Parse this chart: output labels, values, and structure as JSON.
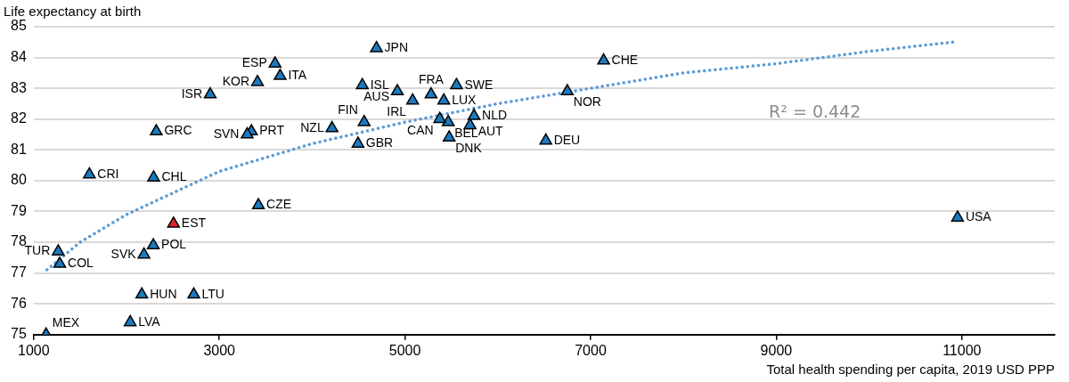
{
  "chart_data": {
    "type": "scatter",
    "ylabel": "Life expectancy at birth",
    "xlabel": "Total health spending per capita, 2019 USD PPP",
    "xlim": [
      1000,
      12000
    ],
    "xticks": [
      1000,
      3000,
      5000,
      7000,
      9000,
      11000
    ],
    "ylim": [
      75,
      85
    ],
    "yticks": [
      75,
      76,
      77,
      78,
      79,
      80,
      81,
      82,
      83,
      84,
      85
    ],
    "grid": "y",
    "marker": "triangle",
    "annotations": [
      "R² = 0.442"
    ],
    "series": [
      {
        "type": "line",
        "color": "#5b9bd5",
        "line_style": "dotted",
        "marker": "none",
        "x": [
          1100,
          1500,
          2000,
          3000,
          4000,
          5000,
          6000,
          7000,
          8000,
          9000,
          10000,
          10900
        ],
        "values": [
          77.0,
          78.0,
          78.9,
          80.3,
          81.2,
          81.9,
          82.5,
          83.0,
          83.5,
          83.8,
          84.2,
          84.5
        ]
      },
      {
        "name": "MEX",
        "color": "#1a7abf",
        "x": [
          1134
        ],
        "values": [
          75.0
        ]
      },
      {
        "name": "LVA",
        "color": "#1a7abf",
        "x": [
          2040
        ],
        "values": [
          75.4
        ]
      },
      {
        "name": "HUN",
        "color": "#1a7abf",
        "x": [
          2165
        ],
        "values": [
          76.3
        ]
      },
      {
        "name": "LTU",
        "color": "#1a7abf",
        "x": [
          2725
        ],
        "values": [
          76.3
        ]
      },
      {
        "name": "TUR",
        "color": "#1a7abf",
        "x": [
          1264
        ],
        "values": [
          77.7
        ]
      },
      {
        "name": "COL",
        "color": "#1a7abf",
        "x": [
          1281
        ],
        "values": [
          77.3
        ]
      },
      {
        "name": "SVK",
        "color": "#1a7abf",
        "x": [
          2188
        ],
        "values": [
          77.6
        ]
      },
      {
        "name": "POL",
        "color": "#1a7abf",
        "x": [
          2289
        ],
        "values": [
          77.9
        ]
      },
      {
        "name": "EST",
        "color": "#e0262b",
        "x": [
          2507
        ],
        "values": [
          78.6
        ]
      },
      {
        "name": "CZE",
        "color": "#1a7abf",
        "x": [
          3421
        ],
        "values": [
          79.2
        ]
      },
      {
        "name": "CRI",
        "color": "#1a7abf",
        "x": [
          1600
        ],
        "values": [
          80.2
        ]
      },
      {
        "name": "CHL",
        "color": "#1a7abf",
        "x": [
          2292
        ],
        "values": [
          80.1
        ]
      },
      {
        "name": "GRC",
        "color": "#1a7abf",
        "x": [
          2321
        ],
        "values": [
          81.6
        ]
      },
      {
        "name": "SVN",
        "color": "#1a7abf",
        "x": [
          3300
        ],
        "values": [
          81.5
        ]
      },
      {
        "name": "PRT",
        "color": "#1a7abf",
        "x": [
          3346
        ],
        "values": [
          81.6
        ]
      },
      {
        "name": "ISR",
        "color": "#1a7abf",
        "x": [
          2902
        ],
        "values": [
          82.8
        ]
      },
      {
        "name": "KOR",
        "color": "#1a7abf",
        "x": [
          3411
        ],
        "values": [
          83.2
        ]
      },
      {
        "name": "ESP",
        "color": "#1a7abf",
        "x": [
          3600
        ],
        "values": [
          83.8
        ]
      },
      {
        "name": "ITA",
        "color": "#1a7abf",
        "x": [
          3655
        ],
        "values": [
          83.4
        ]
      },
      {
        "name": "NZL",
        "color": "#1a7abf",
        "x": [
          4214
        ],
        "values": [
          81.7
        ]
      },
      {
        "name": "JPN",
        "color": "#1a7abf",
        "x": [
          4693
        ],
        "values": [
          84.3
        ]
      },
      {
        "name": "ISL",
        "color": "#1a7abf",
        "x": [
          4540
        ],
        "values": [
          83.1
        ]
      },
      {
        "name": "AUS",
        "color": "#1a7abf",
        "x": [
          4918
        ],
        "values": [
          82.9
        ]
      },
      {
        "name": "IRL",
        "color": "#1a7abf",
        "x": [
          5082
        ],
        "values": [
          82.6
        ]
      },
      {
        "name": "FRA",
        "color": "#1a7abf",
        "x": [
          5281
        ],
        "values": [
          82.8
        ]
      },
      {
        "name": "SWE",
        "color": "#1a7abf",
        "x": [
          5555
        ],
        "values": [
          83.1
        ]
      },
      {
        "name": "LUX",
        "color": "#1a7abf",
        "x": [
          5418
        ],
        "values": [
          82.6
        ]
      },
      {
        "name": "FIN",
        "color": "#1a7abf",
        "x": [
          4560
        ],
        "values": [
          81.9
        ]
      },
      {
        "name": "CAN",
        "color": "#1a7abf",
        "x": [
          5375
        ],
        "values": [
          82.0
        ]
      },
      {
        "name": "BEL",
        "color": "#1a7abf",
        "x": [
          5466
        ],
        "values": [
          81.9
        ]
      },
      {
        "name": "NLD",
        "color": "#1a7abf",
        "x": [
          5744
        ],
        "values": [
          82.1
        ]
      },
      {
        "name": "AUT",
        "color": "#1a7abf",
        "x": [
          5701
        ],
        "values": [
          81.8
        ]
      },
      {
        "name": "DNK",
        "color": "#1a7abf",
        "x": [
          5476
        ],
        "values": [
          81.4
        ]
      },
      {
        "name": "GBR",
        "color": "#1a7abf",
        "x": [
          4494
        ],
        "values": [
          81.2
        ]
      },
      {
        "name": "DEU",
        "color": "#1a7abf",
        "x": [
          6517
        ],
        "values": [
          81.3
        ]
      },
      {
        "name": "NOR",
        "color": "#1a7abf",
        "x": [
          6749
        ],
        "values": [
          82.9
        ]
      },
      {
        "name": "CHE",
        "color": "#1a7abf",
        "x": [
          7140
        ],
        "values": [
          83.9
        ]
      },
      {
        "name": "USA",
        "color": "#1a7abf",
        "x": [
          10953
        ],
        "values": [
          78.8
        ]
      }
    ]
  }
}
